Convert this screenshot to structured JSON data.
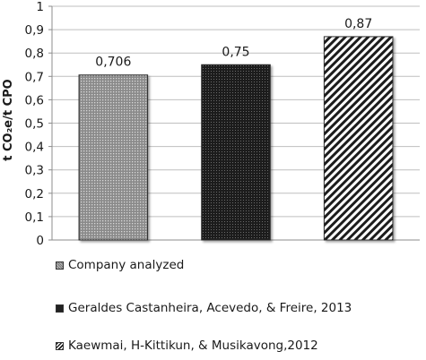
{
  "chart_data": {
    "type": "bar",
    "ylabel": "t CO₂e/t CPO",
    "ylim": [
      0,
      1
    ],
    "yticks": [
      "0",
      "0,1",
      "0,2",
      "0,3",
      "0,4",
      "0,5",
      "0,6",
      "0,7",
      "0,8",
      "0,9",
      "1"
    ],
    "grid": true,
    "series": [
      {
        "name": "Company analyzed",
        "value": 0.706,
        "label": "0,706",
        "pattern": "dots"
      },
      {
        "name": "Geraldes Castanheira, Acevedo, & Freire, 2013",
        "value": 0.75,
        "label": "0,75",
        "pattern": "dark-dots"
      },
      {
        "name": "Kaewmai, H-Kittikun, & Musikavong,2012",
        "value": 0.87,
        "label": "0,87",
        "pattern": "diagonal-stripes"
      }
    ],
    "legend_position": "bottom"
  }
}
